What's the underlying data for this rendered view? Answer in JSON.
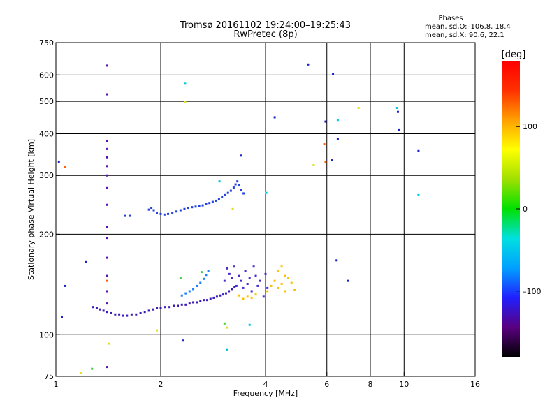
{
  "chart_data": {
    "type": "scatter",
    "title": "Tromsø 20161102 19:24:00–19:25:43",
    "subtitle": "RwPretec (8p)",
    "xlabel": "Frequency [MHz]",
    "ylabel": "Stationary phase Virtual Height [km]",
    "x_scale": "log",
    "y_scale": "log",
    "xlim": [
      1,
      16
    ],
    "ylim": [
      75,
      750
    ],
    "x_ticks": [
      1,
      2,
      4,
      6,
      8,
      10,
      16
    ],
    "x_tick_labels": [
      "1",
      "2",
      "4",
      "6",
      "8",
      "10",
      "16"
    ],
    "x_gridlines": [
      2,
      4,
      6,
      8,
      10
    ],
    "y_ticks": [
      75,
      100,
      200,
      300,
      400,
      500,
      600,
      750
    ],
    "y_tick_labels": [
      "75",
      "100",
      "200",
      "300",
      "400",
      "500",
      "600",
      "750"
    ],
    "y_gridlines": [
      100,
      200,
      300,
      400,
      500,
      600
    ],
    "grid": true,
    "legend_title": "Phases",
    "legend_lines": [
      "mean, sd,O:–106.8, 18.4",
      "mean, sd,X:  90.6, 22.1"
    ],
    "legend_position": "top-right",
    "colorbar": {
      "label": "[deg]",
      "range": [
        -180,
        180
      ],
      "ticks": [
        100,
        0,
        -100
      ],
      "tick_labels": [
        "100",
        "0",
        "–100"
      ],
      "colormap": [
        "#000000",
        "#5a0080",
        "#2020ff",
        "#00a0ff",
        "#00e0e0",
        "#00e000",
        "#a0e000",
        "#ffff00",
        "#ffa000",
        "#ff3000",
        "#ff0000"
      ]
    },
    "series": [
      {
        "color": "#3a1ab8",
        "points": [
          [
            1.28,
            121
          ],
          [
            1.31,
            120
          ],
          [
            1.34,
            119
          ],
          [
            1.37,
            118
          ],
          [
            1.4,
            117
          ],
          [
            1.44,
            116
          ],
          [
            1.48,
            115
          ],
          [
            1.52,
            115
          ],
          [
            1.56,
            114
          ],
          [
            1.6,
            114
          ],
          [
            1.65,
            115
          ],
          [
            1.7,
            115
          ],
          [
            1.75,
            116
          ],
          [
            1.8,
            117
          ],
          [
            1.85,
            118
          ],
          [
            1.9,
            119
          ],
          [
            1.95,
            120
          ],
          [
            2.0,
            120
          ],
          [
            2.06,
            121
          ],
          [
            2.12,
            121
          ],
          [
            2.18,
            122
          ],
          [
            2.24,
            122
          ],
          [
            2.3,
            123
          ],
          [
            2.36,
            123
          ],
          [
            2.42,
            124
          ],
          [
            2.48,
            125
          ],
          [
            2.54,
            125
          ],
          [
            2.6,
            126
          ],
          [
            2.66,
            127
          ],
          [
            2.72,
            127
          ],
          [
            2.78,
            128
          ],
          [
            2.84,
            129
          ],
          [
            2.9,
            130
          ],
          [
            2.96,
            131
          ],
          [
            3.02,
            132
          ],
          [
            3.08,
            133
          ],
          [
            3.14,
            135
          ],
          [
            3.2,
            137
          ],
          [
            3.26,
            139
          ]
        ]
      },
      {
        "color": "#2040e0",
        "points": [
          [
            1.85,
            237
          ],
          [
            1.88,
            240
          ],
          [
            1.91,
            236
          ],
          [
            1.95,
            232
          ],
          [
            2.0,
            230
          ],
          [
            2.05,
            229
          ],
          [
            2.1,
            230
          ],
          [
            2.16,
            232
          ],
          [
            2.22,
            234
          ],
          [
            2.28,
            236
          ],
          [
            2.34,
            238
          ],
          [
            2.4,
            240
          ],
          [
            2.46,
            241
          ],
          [
            2.52,
            242
          ],
          [
            2.58,
            243
          ],
          [
            2.64,
            244
          ],
          [
            2.7,
            246
          ],
          [
            2.76,
            248
          ],
          [
            2.82,
            250
          ],
          [
            2.88,
            252
          ],
          [
            2.94,
            255
          ],
          [
            3.0,
            258
          ],
          [
            3.06,
            262
          ],
          [
            3.12,
            266
          ],
          [
            3.18,
            270
          ],
          [
            3.24,
            276
          ],
          [
            3.28,
            282
          ],
          [
            3.32,
            288
          ],
          [
            3.36,
            280
          ],
          [
            3.4,
            272
          ],
          [
            3.46,
            265
          ],
          [
            1.58,
            227
          ],
          [
            1.63,
            227
          ]
        ]
      },
      {
        "color": "#1a80ff",
        "points": [
          [
            2.3,
            131
          ],
          [
            2.36,
            133
          ],
          [
            2.42,
            135
          ],
          [
            2.48,
            137
          ],
          [
            2.54,
            140
          ],
          [
            2.6,
            143
          ],
          [
            2.66,
            147
          ],
          [
            2.7,
            151
          ],
          [
            2.74,
            155
          ]
        ]
      },
      {
        "color": "#4a2ad0",
        "points": [
          [
            3.05,
            145
          ],
          [
            3.1,
            158
          ],
          [
            3.15,
            152
          ],
          [
            3.2,
            148
          ],
          [
            3.25,
            160
          ],
          [
            3.3,
            140
          ],
          [
            3.35,
            150
          ],
          [
            3.4,
            145
          ],
          [
            3.45,
            138
          ],
          [
            3.5,
            155
          ],
          [
            3.55,
            142
          ],
          [
            3.6,
            148
          ],
          [
            3.65,
            135
          ],
          [
            3.7,
            160
          ],
          [
            3.75,
            150
          ],
          [
            3.8,
            140
          ],
          [
            3.85,
            145
          ],
          [
            3.95,
            130
          ],
          [
            4.0,
            152
          ],
          [
            4.05,
            138
          ]
        ]
      },
      {
        "color": "#ffc000",
        "points": [
          [
            3.35,
            131
          ],
          [
            3.45,
            128
          ],
          [
            3.55,
            130
          ],
          [
            3.65,
            129
          ],
          [
            3.75,
            132
          ],
          [
            4.05,
            135
          ],
          [
            4.15,
            140
          ],
          [
            4.25,
            145
          ],
          [
            4.35,
            138
          ],
          [
            4.45,
            142
          ],
          [
            4.55,
            150
          ],
          [
            4.65,
            148
          ],
          [
            4.75,
            143
          ],
          [
            4.85,
            136
          ],
          [
            4.45,
            160
          ],
          [
            4.35,
            155
          ],
          [
            4.55,
            135
          ]
        ]
      },
      {
        "color": "#5a10b0",
        "points": [
          [
            1.4,
            380
          ],
          [
            1.4,
            360
          ],
          [
            1.4,
            340
          ],
          [
            1.4,
            320
          ],
          [
            1.4,
            300
          ],
          [
            1.4,
            275
          ],
          [
            1.4,
            245
          ],
          [
            1.4,
            210
          ],
          [
            1.4,
            195
          ],
          [
            1.4,
            170
          ],
          [
            1.4,
            150
          ],
          [
            1.4,
            135
          ],
          [
            1.4,
            124
          ],
          [
            1.4,
            640
          ],
          [
            1.4,
            525
          ],
          [
            1.4,
            80
          ]
        ]
      },
      {
        "color": "#1a20c8",
        "points": [
          [
            1.02,
            330
          ],
          [
            1.04,
            113
          ],
          [
            1.06,
            140
          ],
          [
            1.22,
            165
          ],
          [
            2.32,
            96
          ],
          [
            3.4,
            344
          ],
          [
            4.25,
            448
          ],
          [
            5.3,
            645
          ],
          [
            5.95,
            435
          ],
          [
            6.25,
            605
          ],
          [
            6.2,
            333
          ],
          [
            6.45,
            385
          ],
          [
            6.4,
            167
          ],
          [
            6.9,
            145
          ],
          [
            9.6,
            465
          ],
          [
            9.65,
            410
          ],
          [
            11.0,
            355
          ]
        ]
      },
      {
        "color": "#00c8e0",
        "points": [
          [
            2.35,
            565
          ],
          [
            2.95,
            288
          ],
          [
            3.1,
            90
          ],
          [
            4.02,
            266
          ],
          [
            6.45,
            440
          ],
          [
            11.0,
            262
          ],
          [
            9.55,
            478
          ],
          [
            3.6,
            107
          ]
        ]
      },
      {
        "color": "#e0e020",
        "points": [
          [
            1.42,
            94
          ],
          [
            1.18,
            77
          ],
          [
            1.95,
            103
          ],
          [
            3.1,
            105
          ],
          [
            3.22,
            238
          ],
          [
            5.5,
            322
          ],
          [
            7.4,
            478
          ],
          [
            2.35,
            498
          ]
        ]
      },
      {
        "color": "#40d040",
        "points": [
          [
            1.27,
            79
          ],
          [
            3.05,
            108
          ],
          [
            2.62,
            154
          ],
          [
            2.28,
            148
          ]
        ]
      },
      {
        "color": "#ff6000",
        "points": [
          [
            1.4,
            145
          ],
          [
            5.9,
            372
          ],
          [
            5.95,
            330
          ],
          [
            1.06,
            318
          ]
        ]
      }
    ]
  }
}
